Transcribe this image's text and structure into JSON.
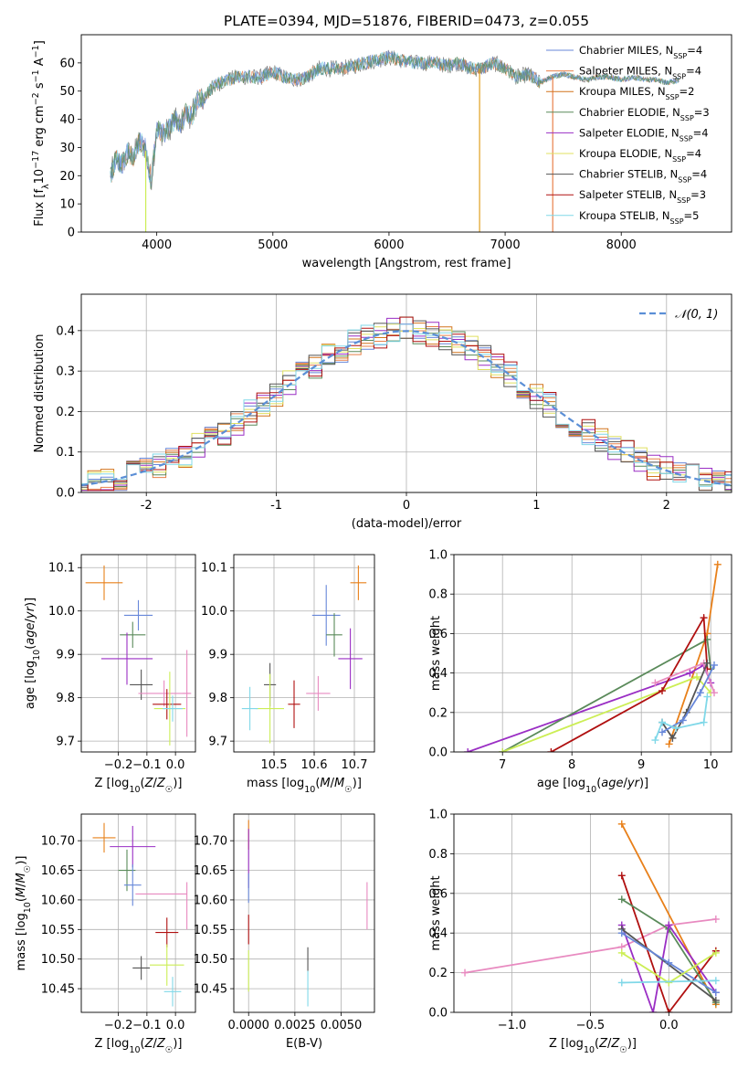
{
  "chart_data": [
    {
      "type": "line",
      "title": "PLATE=0394, MJD=51876, FIBERID=0473, z=0.055",
      "xlabel": "wavelength [Angstrom, rest frame]",
      "ylabel": "Flux [f_λ10^-17 erg cm^-2 s^-1 A^-1]",
      "xlim": [
        3350,
        8950
      ],
      "ylim": [
        0,
        70
      ],
      "xticks": [
        4000,
        5000,
        6000,
        7000,
        8000
      ],
      "yticks": [
        0,
        10,
        20,
        30,
        40,
        50,
        60
      ],
      "grid": false,
      "legend_position": "upper right",
      "x": [
        3600,
        3650,
        3700,
        3750,
        3800,
        3850,
        3900,
        3950,
        4000,
        4050,
        4100,
        4150,
        4200,
        4250,
        4300,
        4350,
        4400,
        4450,
        4500,
        4600,
        4700,
        4800,
        4900,
        5000,
        5100,
        5200,
        5300,
        5400,
        5500,
        5600,
        5700,
        5800,
        5900,
        6000,
        6100,
        6200,
        6300,
        6400,
        6500,
        6600,
        6700,
        6800,
        6900,
        7000,
        7100,
        7200,
        7300,
        7400,
        7500,
        7600,
        7700,
        7800,
        7900,
        8000,
        8100,
        8200,
        8300,
        8400,
        8500
      ],
      "flux": [
        20,
        26,
        24,
        28,
        27,
        32,
        30,
        18,
        36,
        35,
        36,
        40,
        38,
        42,
        41,
        47,
        47,
        50,
        52,
        54,
        55,
        55,
        55,
        57,
        55,
        54,
        55,
        58,
        58,
        58,
        59,
        60,
        61,
        62,
        61,
        60,
        60,
        60,
        59,
        60,
        58,
        58,
        60,
        58,
        55,
        56,
        53,
        55,
        56,
        55,
        54,
        55,
        55,
        54,
        55,
        54,
        54,
        53,
        54
      ],
      "dips": [
        {
          "x": 3905,
          "y": 0
        },
        {
          "x": 6780,
          "y": 0
        },
        {
          "x": 7410,
          "y": 0
        }
      ],
      "legend": [
        {
          "pre": "Chabrier MILES, N",
          "sub": "SSP",
          "post": "=4",
          "color": "#6787d9"
        },
        {
          "pre": "Salpeter MILES, N",
          "sub": "SSP",
          "post": "=4",
          "color": "#e8804a"
        },
        {
          "pre": "Kroupa MILES, N",
          "sub": "SSP",
          "post": "=2",
          "color": "#d2741c"
        },
        {
          "pre": "Chabrier ELODIE, N",
          "sub": "SSP",
          "post": "=3",
          "color": "#5a8a5a"
        },
        {
          "pre": "Salpeter ELODIE, N",
          "sub": "SSP",
          "post": "=4",
          "color": "#9a2ec4"
        },
        {
          "pre": "Kroupa ELODIE, N",
          "sub": "SSP",
          "post": "=4",
          "color": "#e0e060"
        },
        {
          "pre": "Chabrier STELIB, N",
          "sub": "SSP",
          "post": "=4",
          "color": "#555555"
        },
        {
          "pre": "Salpeter STELIB, N",
          "sub": "SSP",
          "post": "=3",
          "color": "#b01010"
        },
        {
          "pre": "Kroupa STELIB, N",
          "sub": "SSP",
          "post": "=5",
          "color": "#80d8e8"
        }
      ]
    },
    {
      "type": "line",
      "xlabel": "(data-model)/error",
      "ylabel": "Normed distribution",
      "xlim": [
        -2.5,
        2.5
      ],
      "ylim": [
        0,
        0.49
      ],
      "xticks": [
        -2,
        -1,
        0,
        1,
        2
      ],
      "yticks": [
        0.0,
        0.1,
        0.2,
        0.3,
        0.4
      ],
      "grid": true,
      "legend_position": "upper right",
      "normal_legend": "𝒩(0, 1)",
      "normal_color": "#5b8fd6",
      "bin_width": 0.1,
      "histograms": [
        {
          "name": "Chabrier MILES",
          "color": "#6787d9",
          "seed": 1
        },
        {
          "name": "Salpeter MILES",
          "color": "#e8804a",
          "seed": 2
        },
        {
          "name": "Kroupa MILES",
          "color": "#d2741c",
          "seed": 3
        },
        {
          "name": "Chabrier ELODIE",
          "color": "#5a8a5a",
          "seed": 4
        },
        {
          "name": "Salpeter ELODIE",
          "color": "#9a2ec4",
          "seed": 5
        },
        {
          "name": "Kroupa ELODIE",
          "color": "#e0e060",
          "seed": 6
        },
        {
          "name": "Chabrier STELIB",
          "color": "#555555",
          "seed": 7
        },
        {
          "name": "Salpeter STELIB",
          "color": "#b01010",
          "seed": 8
        },
        {
          "name": "Kroupa STELIB",
          "color": "#80d8e8",
          "seed": 9
        }
      ]
    },
    {
      "type": "scatter",
      "xlabel": "Z [log10(Z/Z☉)]",
      "ylabel": "age  [log10(age/yr)]",
      "xlim": [
        -0.33,
        0.07
      ],
      "ylim": [
        9.675,
        10.13
      ],
      "xticks": [
        -0.2,
        -0.1,
        0.0
      ],
      "xticklabels": [
        "−0.2",
        "−0.1",
        "0.0"
      ],
      "yticks": [
        9.7,
        9.8,
        9.9,
        10.0,
        10.1
      ],
      "grid": true,
      "points": [
        {
          "x": -0.25,
          "y": 10.065,
          "xerr": 0.065,
          "yerr": 0.04,
          "color": "#e8801a"
        },
        {
          "x": -0.13,
          "y": 9.99,
          "xerr": 0.05,
          "yerr": 0.035,
          "color": "#6787d9"
        },
        {
          "x": -0.15,
          "y": 9.945,
          "xerr": 0.045,
          "yerr": 0.03,
          "color": "#5a8a5a"
        },
        {
          "x": -0.17,
          "y": 9.89,
          "xerr": 0.09,
          "yerr": 0.06,
          "color": "#9a2ec4"
        },
        {
          "x": -0.12,
          "y": 9.83,
          "xerr": 0.04,
          "yerr": 0.035,
          "color": "#555555"
        },
        {
          "x": -0.04,
          "y": 9.81,
          "xerr": 0.09,
          "yerr": 0.03,
          "color": "#e88ac0"
        },
        {
          "x": 0.04,
          "y": 9.81,
          "xerr": 0.015,
          "yerr": 0.1,
          "color": "#e88ac0"
        },
        {
          "x": -0.03,
          "y": 9.785,
          "xerr": 0.05,
          "yerr": 0.035,
          "color": "#b01010"
        },
        {
          "x": -0.02,
          "y": 9.775,
          "xerr": 0.055,
          "yerr": 0.085,
          "color": "#ccee55"
        },
        {
          "x": -0.01,
          "y": 9.775,
          "xerr": 0.035,
          "yerr": 0.03,
          "color": "#80d8e8"
        }
      ]
    },
    {
      "type": "scatter",
      "xlabel": "mass [log10(M/M☉)]",
      "xlim": [
        10.4,
        10.75
      ],
      "ylim": [
        9.675,
        10.13
      ],
      "xticks": [
        10.5,
        10.6,
        10.7
      ],
      "yticks": [
        9.7,
        9.8,
        9.9,
        10.0,
        10.1
      ],
      "grid": true,
      "points": [
        {
          "x": 10.71,
          "y": 10.065,
          "xerr": 0.02,
          "yerr": 0.04,
          "color": "#e8801a"
        },
        {
          "x": 10.63,
          "y": 9.99,
          "xerr": 0.035,
          "yerr": 0.07,
          "color": "#6787d9"
        },
        {
          "x": 10.65,
          "y": 9.945,
          "xerr": 0.02,
          "yerr": 0.05,
          "color": "#5a8a5a"
        },
        {
          "x": 10.69,
          "y": 9.89,
          "xerr": 0.03,
          "yerr": 0.07,
          "color": "#9a2ec4"
        },
        {
          "x": 10.49,
          "y": 9.83,
          "xerr": 0.015,
          "yerr": 0.05,
          "color": "#555555"
        },
        {
          "x": 10.61,
          "y": 9.81,
          "xerr": 0.03,
          "yerr": 0.04,
          "color": "#e88ac0"
        },
        {
          "x": 10.55,
          "y": 9.785,
          "xerr": 0.015,
          "yerr": 0.055,
          "color": "#b01010"
        },
        {
          "x": 10.49,
          "y": 9.775,
          "xerr": 0.035,
          "yerr": 0.08,
          "color": "#ccee55"
        },
        {
          "x": 10.44,
          "y": 9.775,
          "xerr": 0.02,
          "yerr": 0.05,
          "color": "#80d8e8"
        }
      ]
    },
    {
      "type": "line",
      "xlabel": "age  [log10(age/yr)]",
      "ylabel": "mass weight",
      "xlim": [
        6.3,
        10.3
      ],
      "ylim": [
        0,
        1.0
      ],
      "xticks": [
        7,
        8,
        9,
        10
      ],
      "yticks": [
        0.0,
        0.2,
        0.4,
        0.6,
        0.8,
        1.0
      ],
      "grid": true,
      "series": [
        {
          "color": "#e8801a",
          "points": [
            [
              9.4,
              0.04
            ],
            [
              9.95,
              0.6
            ],
            [
              10.1,
              0.95
            ]
          ]
        },
        {
          "color": "#9a2ec4",
          "points": [
            [
              6.5,
              0.0
            ],
            [
              9.7,
              0.4
            ],
            [
              9.9,
              0.44
            ],
            [
              10.0,
              0.35
            ]
          ]
        },
        {
          "color": "#5a8a5a",
          "points": [
            [
              7.0,
              0.0
            ],
            [
              9.95,
              0.57
            ],
            [
              10.0,
              0.42
            ]
          ]
        },
        {
          "color": "#ccee55",
          "points": [
            [
              7.0,
              0.0
            ],
            [
              9.8,
              0.38
            ],
            [
              10.0,
              0.3
            ]
          ]
        },
        {
          "color": "#b01010",
          "points": [
            [
              7.7,
              0.0
            ],
            [
              9.3,
              0.31
            ],
            [
              9.9,
              0.68
            ],
            [
              9.95,
              0.42
            ]
          ]
        },
        {
          "color": "#e88ac0",
          "points": [
            [
              9.2,
              0.35
            ],
            [
              9.9,
              0.45
            ],
            [
              10.05,
              0.3
            ]
          ]
        },
        {
          "color": "#555555",
          "points": [
            [
              9.3,
              0.15
            ],
            [
              9.45,
              0.07
            ],
            [
              9.65,
              0.2
            ],
            [
              9.95,
              0.45
            ]
          ]
        },
        {
          "color": "#6787d9",
          "points": [
            [
              9.3,
              0.1
            ],
            [
              9.6,
              0.16
            ],
            [
              9.85,
              0.3
            ],
            [
              10.05,
              0.44
            ]
          ]
        },
        {
          "color": "#80d8e8",
          "points": [
            [
              9.2,
              0.06
            ],
            [
              9.3,
              0.15
            ],
            [
              9.5,
              0.12
            ],
            [
              9.9,
              0.15
            ],
            [
              9.95,
              0.28
            ]
          ]
        }
      ]
    },
    {
      "type": "scatter",
      "xlabel": "Z [log10(Z/Z☉)]",
      "ylabel": "mass [log10(M/M☉)]",
      "xlim": [
        -0.33,
        0.07
      ],
      "ylim": [
        10.41,
        10.745
      ],
      "xticks": [
        -0.2,
        -0.1,
        0.0
      ],
      "xticklabels": [
        "−0.2",
        "−0.1",
        "0.0"
      ],
      "yticks": [
        10.45,
        10.5,
        10.55,
        10.6,
        10.65,
        10.7
      ],
      "grid": true,
      "points": [
        {
          "x": -0.25,
          "y": 10.705,
          "xerr": 0.04,
          "yerr": 0.025,
          "color": "#e8801a"
        },
        {
          "x": -0.15,
          "y": 10.69,
          "xerr": 0.08,
          "yerr": 0.035,
          "color": "#9a2ec4"
        },
        {
          "x": -0.17,
          "y": 10.65,
          "xerr": 0.03,
          "yerr": 0.035,
          "color": "#5a8a5a"
        },
        {
          "x": -0.15,
          "y": 10.625,
          "xerr": 0.03,
          "yerr": 0.035,
          "color": "#6787d9"
        },
        {
          "x": -0.05,
          "y": 10.61,
          "xerr": 0.09,
          "yerr": 0.0,
          "color": "#e88ac0"
        },
        {
          "x": 0.04,
          "y": 10.59,
          "xerr": 0.0,
          "yerr": 0.04,
          "color": "#e88ac0"
        },
        {
          "x": -0.03,
          "y": 10.545,
          "xerr": 0.04,
          "yerr": 0.025,
          "color": "#b01010"
        },
        {
          "x": -0.03,
          "y": 10.49,
          "xerr": 0.06,
          "yerr": 0.035,
          "color": "#ccee55"
        },
        {
          "x": -0.12,
          "y": 10.485,
          "xerr": 0.03,
          "yerr": 0.02,
          "color": "#555555"
        },
        {
          "x": -0.01,
          "y": 10.445,
          "xerr": 0.03,
          "yerr": 0.025,
          "color": "#80d8e8"
        }
      ]
    },
    {
      "type": "scatter",
      "xlabel": "E(B-V)",
      "xlim": [
        -0.0008,
        0.0068
      ],
      "ylim": [
        10.41,
        10.745
      ],
      "xticks": [
        0.0,
        0.0025,
        0.005
      ],
      "xticklabels": [
        "0.0000",
        "0.0025",
        "0.0050"
      ],
      "yticks": [
        10.45,
        10.5,
        10.55,
        10.6,
        10.65,
        10.7
      ],
      "grid": true,
      "points": [
        {
          "x": 0.0,
          "y": 10.71,
          "xerr": 0,
          "yerr": 0.025,
          "color": "#e8801a"
        },
        {
          "x": 0.0,
          "y": 10.67,
          "xerr": 0,
          "yerr": 0.05,
          "color": "#9a2ec4"
        },
        {
          "x": 0.0,
          "y": 10.62,
          "xerr": 0,
          "yerr": 0.025,
          "color": "#6787d9"
        },
        {
          "x": 0.0,
          "y": 10.55,
          "xerr": 0,
          "yerr": 0.025,
          "color": "#b01010"
        },
        {
          "x": 0.0,
          "y": 10.48,
          "xerr": 0,
          "yerr": 0.035,
          "color": "#ccee55"
        },
        {
          "x": 0.0032,
          "y": 10.5,
          "xerr": 0,
          "yerr": 0.02,
          "color": "#555555"
        },
        {
          "x": 0.0032,
          "y": 10.45,
          "xerr": 0,
          "yerr": 0.03,
          "color": "#80d8e8"
        },
        {
          "x": 0.0064,
          "y": 10.59,
          "xerr": 0,
          "yerr": 0.04,
          "color": "#e88ac0"
        }
      ]
    },
    {
      "type": "line",
      "xlabel": "Z [log10(Z/Z☉)]",
      "ylabel": "mass weight",
      "xlim": [
        -1.37,
        0.4
      ],
      "ylim": [
        0,
        1.0
      ],
      "xticks": [
        -1.0,
        -0.5,
        0.0
      ],
      "xticklabels": [
        "−1.0",
        "−0.5",
        "0.0"
      ],
      "yticks": [
        0.0,
        0.2,
        0.4,
        0.6,
        0.8,
        1.0
      ],
      "grid": true,
      "series": [
        {
          "color": "#e8801a",
          "points": [
            [
              -0.3,
              0.95
            ],
            [
              0.3,
              0.04
            ]
          ]
        },
        {
          "color": "#e88ac0",
          "points": [
            [
              -1.3,
              0.2
            ],
            [
              -0.3,
              0.33
            ],
            [
              0.0,
              0.44
            ],
            [
              0.3,
              0.47
            ]
          ]
        },
        {
          "color": "#b01010",
          "points": [
            [
              -0.3,
              0.69
            ],
            [
              0.0,
              0.0
            ],
            [
              0.3,
              0.31
            ]
          ]
        },
        {
          "color": "#5a8a5a",
          "points": [
            [
              -0.3,
              0.57
            ],
            [
              0.0,
              0.42
            ],
            [
              0.3,
              0.05
            ]
          ]
        },
        {
          "color": "#9a2ec4",
          "points": [
            [
              -0.3,
              0.44
            ],
            [
              -0.1,
              0.0
            ],
            [
              0.0,
              0.44
            ],
            [
              0.3,
              0.1
            ]
          ]
        },
        {
          "color": "#555555",
          "points": [
            [
              -0.3,
              0.42
            ],
            [
              0.3,
              0.06
            ]
          ]
        },
        {
          "color": "#6787d9",
          "points": [
            [
              -0.3,
              0.4
            ],
            [
              0.0,
              0.25
            ],
            [
              0.3,
              0.1
            ]
          ]
        },
        {
          "color": "#ccee55",
          "points": [
            [
              -0.3,
              0.3
            ],
            [
              0.0,
              0.15
            ],
            [
              0.3,
              0.3
            ]
          ]
        },
        {
          "color": "#80d8e8",
          "points": [
            [
              -0.3,
              0.15
            ],
            [
              0.3,
              0.16
            ]
          ]
        }
      ]
    }
  ]
}
